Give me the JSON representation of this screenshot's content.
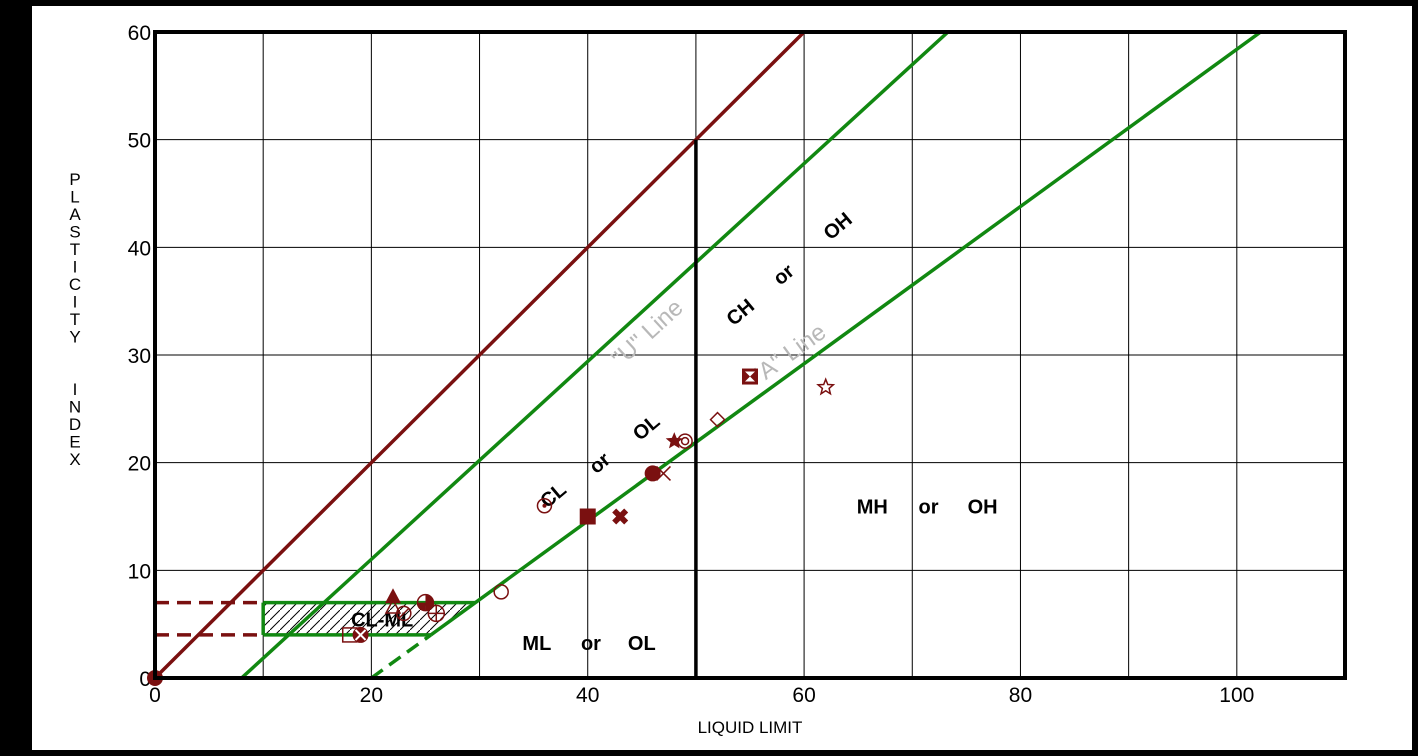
{
  "colors": {
    "frame": "#000000",
    "background": "#ffffff",
    "grid": "#000000",
    "a_u_lines": "#118811",
    "limit_line": "#7a1010",
    "points": "#7a1010",
    "u_label": "#b8b8b8",
    "a_label": "#b8b8b8"
  },
  "chart_data": {
    "type": "scatter",
    "xlabel": "LIQUID LIMIT",
    "ylabel": "PLASTICITY INDEX",
    "xlim": [
      0,
      110
    ],
    "ylim": [
      0,
      60
    ],
    "x_ticks": [
      0,
      20,
      40,
      60,
      80,
      100
    ],
    "y_ticks": [
      0,
      10,
      20,
      30,
      40,
      50,
      60
    ],
    "grid": true,
    "lines": [
      {
        "name": "PI = LL",
        "color_key": "limit_line",
        "points": [
          [
            0,
            0
          ],
          [
            60,
            60
          ]
        ]
      },
      {
        "name": "\"U\" Line",
        "color_key": "a_u_lines",
        "points": [
          [
            8,
            0
          ],
          [
            73.3,
            60
          ]
        ]
      },
      {
        "name": "\"A\" Line",
        "color_key": "a_u_lines",
        "points": [
          [
            25.5,
            4
          ],
          [
            102.2,
            60
          ]
        ]
      },
      {
        "name": "\"A\" Line extension",
        "color_key": "a_u_lines",
        "dashed": true,
        "points": [
          [
            20,
            0
          ],
          [
            25.5,
            4
          ]
        ]
      },
      {
        "name": "CL-ML upper",
        "color_key": "a_u_lines",
        "points": [
          [
            10,
            7
          ],
          [
            29.6,
            7
          ]
        ]
      },
      {
        "name": "CL-ML left",
        "color_key": "a_u_lines",
        "points": [
          [
            10,
            4
          ],
          [
            10,
            7
          ]
        ]
      },
      {
        "name": "CL-ML lower",
        "color_key": "a_u_lines",
        "points": [
          [
            10,
            4
          ],
          [
            25.5,
            4
          ]
        ]
      },
      {
        "name": "LL = 50",
        "color_key": "frame",
        "points": [
          [
            50,
            0
          ],
          [
            50,
            50
          ]
        ]
      },
      {
        "name": "PI 7 dashed",
        "color_key": "limit_line",
        "dashed": true,
        "points": [
          [
            0,
            7
          ],
          [
            10,
            7
          ]
        ]
      },
      {
        "name": "PI 4 dashed",
        "color_key": "limit_line",
        "dashed": true,
        "points": [
          [
            0,
            4
          ],
          [
            10,
            4
          ]
        ]
      }
    ],
    "line_labels": [
      {
        "text": "\"U\" Line",
        "x": 46,
        "y": 31.5,
        "angle": -42.5
      },
      {
        "text": "\"A\" Line",
        "x": 59,
        "y": 29.5,
        "angle": -36
      }
    ],
    "zone_labels": [
      {
        "text": "CL-ML",
        "x": 21,
        "y": 4.8,
        "rotate": false
      },
      {
        "text": "ML",
        "x": 35.3,
        "y": 2.6,
        "rotate": false
      },
      {
        "text": "or",
        "x": 40.3,
        "y": 2.6,
        "rotate": false
      },
      {
        "text": "OL",
        "x": 45,
        "y": 2.6,
        "rotate": false
      },
      {
        "text": "MH",
        "x": 66.3,
        "y": 15.3,
        "rotate": false
      },
      {
        "text": "or",
        "x": 71.5,
        "y": 15.3,
        "rotate": false
      },
      {
        "text": "OH",
        "x": 76.5,
        "y": 15.3,
        "rotate": false
      },
      {
        "text": "CL",
        "x": 37.2,
        "y": 16.5,
        "rotate": true
      },
      {
        "text": "or",
        "x": 41.5,
        "y": 19.5,
        "rotate": true
      },
      {
        "text": "OL",
        "x": 45.8,
        "y": 22.8,
        "rotate": true
      },
      {
        "text": "CH",
        "x": 54.5,
        "y": 33.5,
        "rotate": true
      },
      {
        "text": "or",
        "x": 58.5,
        "y": 37,
        "rotate": true
      },
      {
        "text": "OH",
        "x": 63.5,
        "y": 41.5,
        "rotate": true
      }
    ],
    "points": [
      {
        "x": 0,
        "y": 0,
        "marker": "filled-circle"
      },
      {
        "x": 18,
        "y": 4,
        "marker": "open-square"
      },
      {
        "x": 19,
        "y": 4,
        "marker": "circle-cross"
      },
      {
        "x": 22,
        "y": 7.5,
        "marker": "filled-triangle"
      },
      {
        "x": 22,
        "y": 6.5,
        "marker": "open-triangle"
      },
      {
        "x": 23,
        "y": 6,
        "marker": "open-circle-slash"
      },
      {
        "x": 25,
        "y": 7,
        "marker": "half-circle"
      },
      {
        "x": 26,
        "y": 6,
        "marker": "circle-plus"
      },
      {
        "x": 32,
        "y": 8,
        "marker": "open-circle"
      },
      {
        "x": 36,
        "y": 16,
        "marker": "circle-dot"
      },
      {
        "x": 40,
        "y": 15,
        "marker": "filled-square"
      },
      {
        "x": 43,
        "y": 15,
        "marker": "filled-cross"
      },
      {
        "x": 46,
        "y": 19,
        "marker": "filled-circle"
      },
      {
        "x": 47,
        "y": 19,
        "marker": "x-cross"
      },
      {
        "x": 48,
        "y": 22,
        "marker": "filled-star"
      },
      {
        "x": 49,
        "y": 22,
        "marker": "double-circle"
      },
      {
        "x": 52,
        "y": 24,
        "marker": "open-diamond"
      },
      {
        "x": 55,
        "y": 28,
        "marker": "hourglass-square"
      },
      {
        "x": 62,
        "y": 27,
        "marker": "open-star"
      }
    ]
  }
}
